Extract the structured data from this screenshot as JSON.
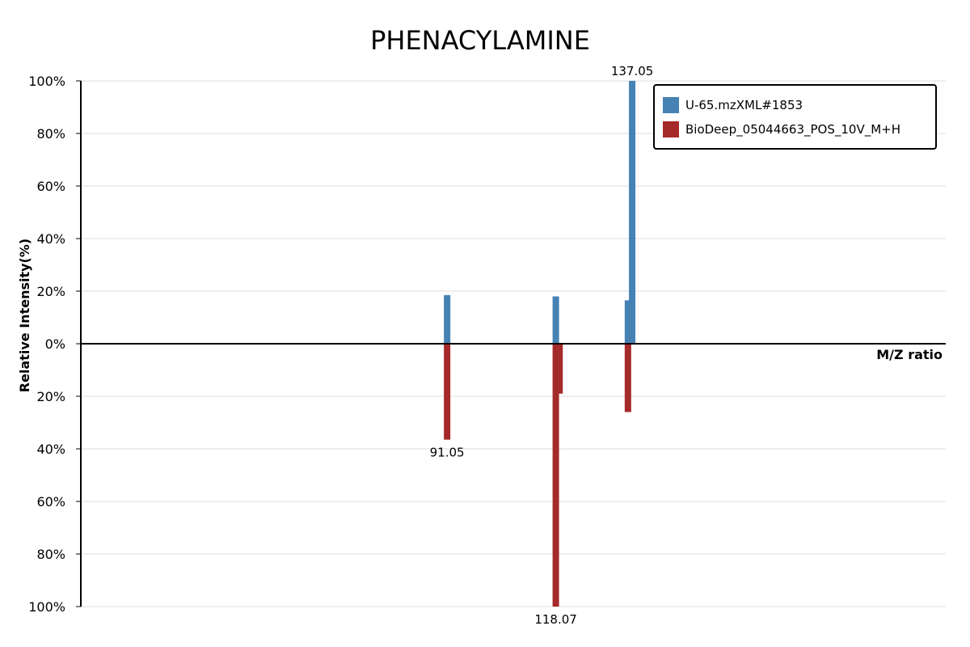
{
  "chart_data": {
    "type": "bar",
    "title": "PHENACYLAMINE",
    "xlabel": "M/Z ratio",
    "ylabel": "Relative Intensity(%)",
    "xlim": [
      0,
      215
    ],
    "ylim": [
      -100,
      100
    ],
    "y_ticks": [
      {
        "value": 100,
        "label": "100%"
      },
      {
        "value": 80,
        "label": "80%"
      },
      {
        "value": 60,
        "label": "60%"
      },
      {
        "value": 40,
        "label": "40%"
      },
      {
        "value": 20,
        "label": "20%"
      },
      {
        "value": 0,
        "label": "0%"
      },
      {
        "value": -20,
        "label": "20%"
      },
      {
        "value": -40,
        "label": "40%"
      },
      {
        "value": -60,
        "label": "60%"
      },
      {
        "value": -80,
        "label": "80%"
      },
      {
        "value": -100,
        "label": "100%"
      }
    ],
    "legend_position": "top-right",
    "grid": true,
    "series": [
      {
        "name": "U-65.mzXML#1853",
        "color": "#4682b4",
        "direction": "up",
        "peaks": [
          {
            "mz": 91.05,
            "intensity": 18.5
          },
          {
            "mz": 118.07,
            "intensity": 18
          },
          {
            "mz": 136.0,
            "intensity": 16.5
          },
          {
            "mz": 137.05,
            "intensity": 100
          }
        ]
      },
      {
        "name": "BioDeep_05044663_POS_10V_M+H",
        "color": "#a52a2a",
        "direction": "down",
        "peaks": [
          {
            "mz": 91.05,
            "intensity": 36.5
          },
          {
            "mz": 118.07,
            "intensity": 100
          },
          {
            "mz": 119.0,
            "intensity": 19
          },
          {
            "mz": 136.0,
            "intensity": 26
          }
        ]
      }
    ],
    "peak_labels": [
      {
        "mz": 137.05,
        "text": "137.05",
        "side": "top"
      },
      {
        "mz": 91.05,
        "text": "91.05",
        "side": "bottom"
      },
      {
        "mz": 118.07,
        "text": "118.07",
        "side": "bottom"
      }
    ]
  }
}
